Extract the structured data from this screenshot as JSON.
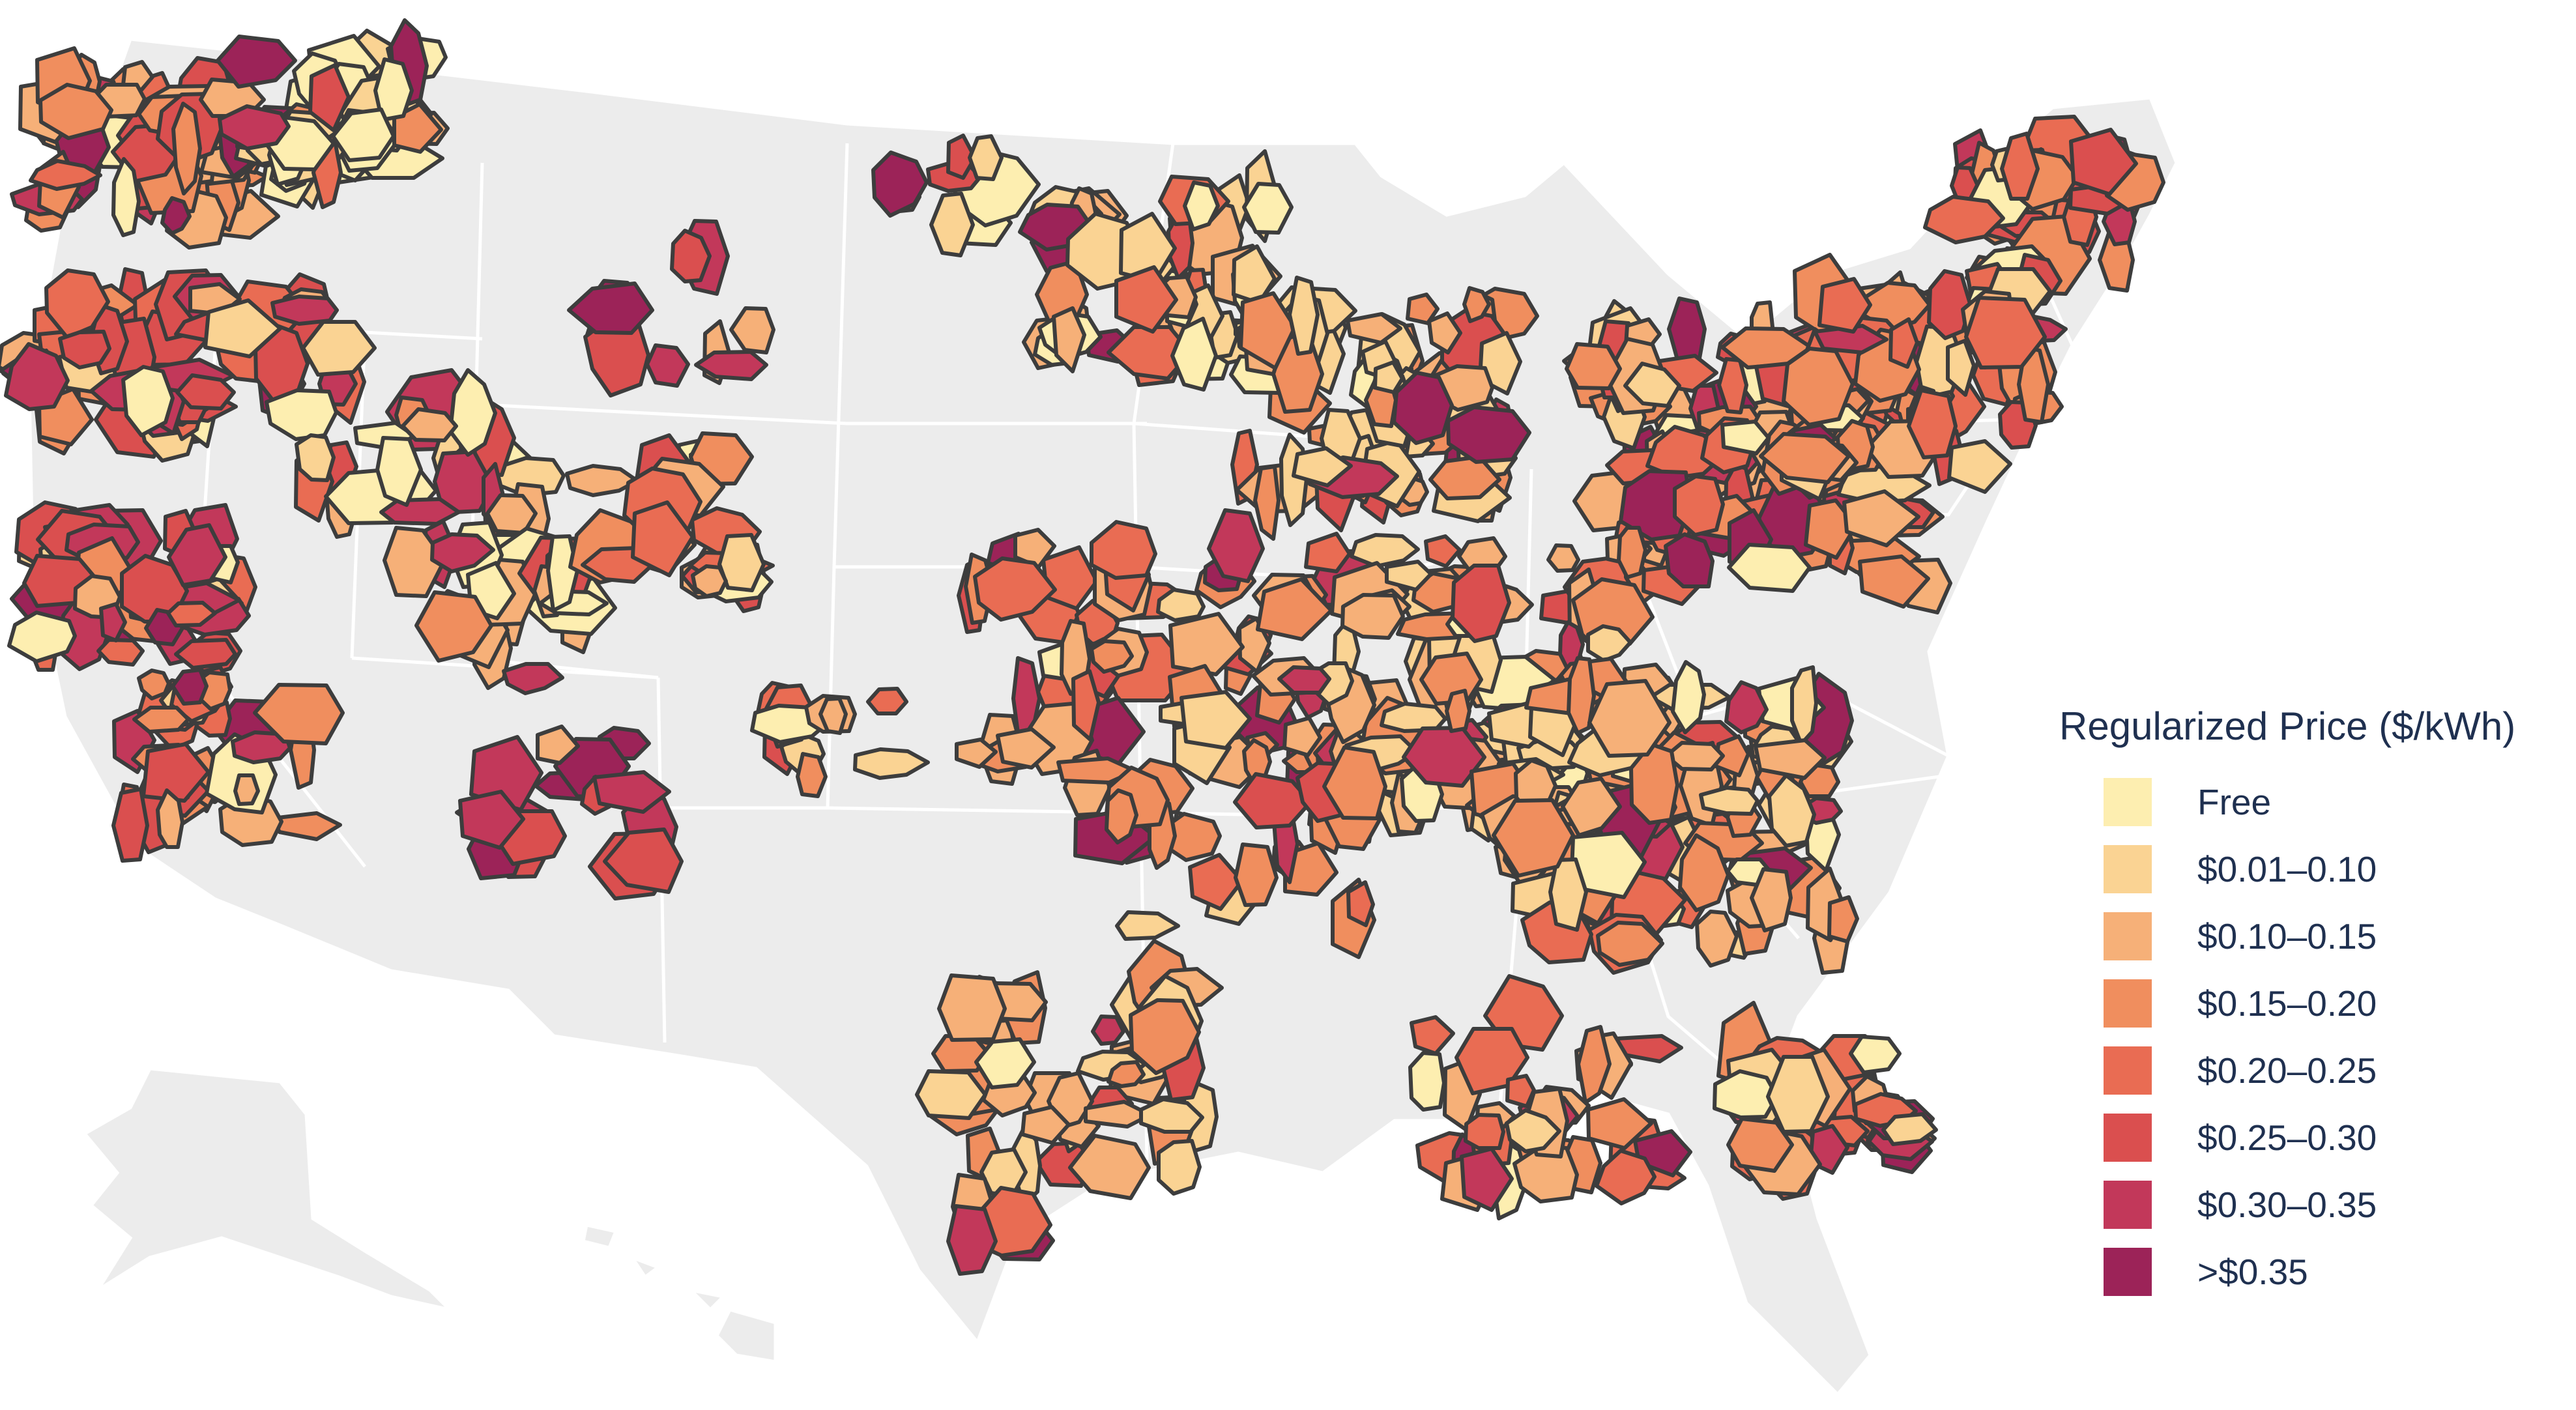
{
  "legend": {
    "title": "Regularized Price ($/kWh)",
    "items": [
      {
        "label": "Free",
        "color": "#fdeeb0"
      },
      {
        "label": "$0.01–0.10",
        "color": "#fad393"
      },
      {
        "label": "$0.10–0.15",
        "color": "#f6b078"
      },
      {
        "label": "$0.15–0.20",
        "color": "#f08e5e"
      },
      {
        "label": "$0.20–0.25",
        "color": "#e96c53"
      },
      {
        "label": "$0.25–0.30",
        "color": "#da4f4f"
      },
      {
        "label": "$0.30–0.35",
        "color": "#c2385a"
      },
      {
        "label": ">$0.35",
        "color": "#9c2358"
      }
    ]
  },
  "colors": {
    "land": "#ececec",
    "state_border": "#ffffff",
    "county_border": "#3d3d3d"
  }
}
